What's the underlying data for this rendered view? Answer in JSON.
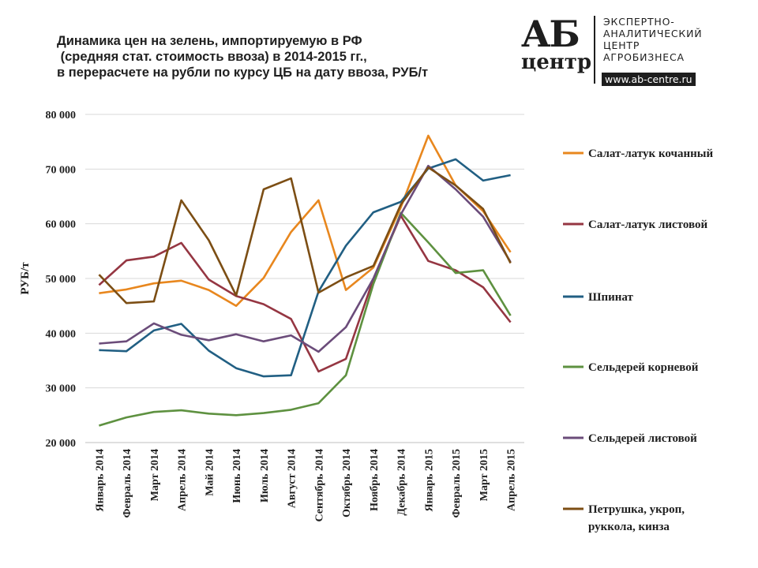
{
  "header": {
    "title": "Динамика цен на зелень, импортируемую в РФ\n (средняя стат. стоимость ввоза) в 2014-2015 гг.,\nв перерасчете на рубли по курсу ЦБ на дату ввоза, РУБ/т"
  },
  "logo": {
    "monogram": "АБ",
    "monogram_sub": "центр",
    "lines": [
      "ЭКСПЕРТНО-",
      "АНАЛИТИЧЕСКИЙ",
      "ЦЕНТР",
      "АГРОБИЗНЕСА"
    ],
    "url": "www.ab-centre.ru"
  },
  "chart_data": {
    "type": "line",
    "title": "Динамика цен на зелень, импортируемую в РФ (средняя стат. стоимость ввоза) в 2014-2015 гг., в перерасчете на рубли по курсу ЦБ на дату ввоза, РУБ/т",
    "ylabel": "РУБ/т",
    "xlabel": "",
    "ylim": [
      20000,
      80000
    ],
    "yticks": [
      20000,
      30000,
      40000,
      50000,
      60000,
      70000,
      80000
    ],
    "ytick_labels": [
      "20 000",
      "30 000",
      "40 000",
      "50 000",
      "60 000",
      "70 000",
      "80 000"
    ],
    "grid": "horizontal",
    "legend_position": "right",
    "categories": [
      "Январь 2014",
      "Февраль 2014",
      "Март 2014",
      "Апрель 2014",
      "Май 2014",
      "Июнь 2014",
      "Июль 2014",
      "Август 2014",
      "Сентябрь 2014",
      "Октябрь 2014",
      "Ноябрь 2014",
      "Декабрь 2014",
      "Январь 2015",
      "Февраль 2015",
      "Март 2015",
      "Апрель 2015"
    ],
    "series": [
      {
        "name": "Салат-латук кочанный",
        "color": "#E8871E",
        "values": [
          47300,
          48000,
          49100,
          49600,
          47900,
          45000,
          50100,
          58500,
          64300,
          47900,
          52000,
          63000,
          76100,
          67000,
          62300,
          54800
        ]
      },
      {
        "name": "Салат-латук листовой",
        "color": "#953642",
        "values": [
          48800,
          53300,
          54000,
          56500,
          49800,
          46800,
          45300,
          42600,
          33000,
          35300,
          49900,
          61500,
          53200,
          51500,
          48400,
          42000
        ]
      },
      {
        "name": "Шпинат",
        "color": "#215F83",
        "values": [
          36900,
          36700,
          40500,
          41700,
          36800,
          33600,
          32100,
          32300,
          47600,
          56000,
          62100,
          64000,
          70100,
          71800,
          67900,
          68900
        ]
      },
      {
        "name": "Сельдерей корневой",
        "color": "#5E9140",
        "values": [
          23100,
          24600,
          25600,
          25900,
          25300,
          25000,
          25400,
          26000,
          27200,
          32300,
          49000,
          62000,
          56600,
          51000,
          51500,
          43200
        ]
      },
      {
        "name": "Сельдерей листовой",
        "color": "#6B4C7A",
        "values": [
          38100,
          38500,
          41800,
          39700,
          38700,
          39800,
          38500,
          39600,
          36600,
          41100,
          50000,
          61700,
          70600,
          66300,
          61300,
          53000
        ]
      },
      {
        "name": "Петрушка, укроп, руккола, кинза",
        "color": "#7C4E14",
        "legend_lines": [
          "Петрушка, укроп,",
          "руккола, кинза"
        ],
        "values": [
          50700,
          45500,
          45800,
          64300,
          57000,
          46900,
          66300,
          68300,
          47400,
          50200,
          52300,
          63500,
          70300,
          67000,
          62700,
          52800
        ]
      }
    ]
  }
}
